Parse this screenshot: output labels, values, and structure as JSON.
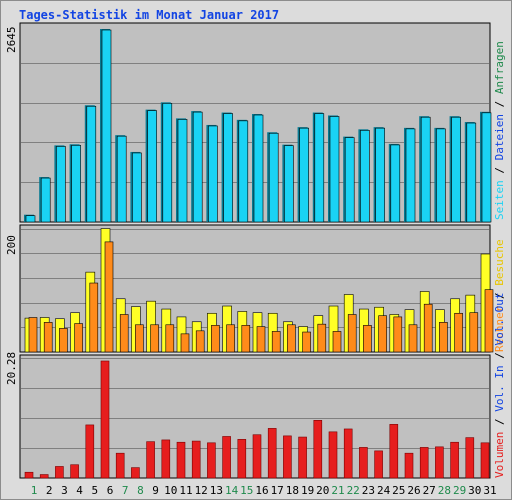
{
  "title": "Tages-Statistik im Monat Januar 2017",
  "colors": {
    "title": "#1244e3",
    "panel_bg": "#c0c0c0",
    "grid": "#808080",
    "hits": "#1ad3f4",
    "hits_dark": "#077a92",
    "pages": "#1ad3f4",
    "visits": "#ffff26",
    "visits_dark": "#a4a400",
    "sites": "#ff8b1a",
    "sites_dark": "#a84e00",
    "volume": "#e61e1e",
    "volume_dark": "#7a0000",
    "weekday": "#000000",
    "weekend": "#1f8a4c",
    "legend_anfragen": "#1f8a4c",
    "legend_dateien": "#1244e3",
    "legend_seiten": "#1ad3f4",
    "legend_besuche": "#e8c600",
    "legend_rechner": "#ff8b1a",
    "legend_volout": "#1244e3",
    "legend_volin": "#1244e3",
    "legend_volumen": "#e61e1e",
    "legend_sep": "#000000"
  },
  "legend": {
    "top": [
      "Anfragen",
      "Dateien",
      "Seiten"
    ],
    "middle": [
      "Besuche",
      "Rechner"
    ],
    "bottom": [
      "Vol. Out",
      "Vol. In",
      "Volumen"
    ],
    "separator": " / "
  },
  "chart_data": [
    {
      "type": "bar",
      "panel": "top",
      "ymax_label": "2645",
      "ylim": [
        0,
        2645
      ],
      "categories": [
        "1",
        "2",
        "3",
        "4",
        "5",
        "6",
        "7",
        "8",
        "9",
        "10",
        "11",
        "12",
        "13",
        "14",
        "15",
        "16",
        "17",
        "18",
        "19",
        "20",
        "21",
        "22",
        "23",
        "24",
        "25",
        "26",
        "27",
        "28",
        "29",
        "30",
        "31"
      ],
      "series": [
        {
          "name": "Anfragen",
          "values": [
            100,
            616,
            1050,
            1065,
            1600,
            2645,
            1190,
            960,
            1540,
            1640,
            1420,
            1520,
            1330,
            1500,
            1400,
            1480,
            1230,
            1060,
            1300,
            1500,
            1460,
            1170,
            1270,
            1300,
            1070,
            1290,
            1450,
            1290,
            1450,
            1370,
            1510
          ]
        },
        {
          "name": "Dateien",
          "values": [
            100,
            616,
            1050,
            1065,
            1600,
            2645,
            1190,
            960,
            1540,
            1640,
            1420,
            1520,
            1330,
            1500,
            1400,
            1480,
            1230,
            1060,
            1300,
            1500,
            1460,
            1170,
            1270,
            1300,
            1070,
            1290,
            1450,
            1290,
            1450,
            1370,
            1510
          ]
        },
        {
          "name": "Seiten",
          "values": [
            100,
            616,
            1050,
            1065,
            1600,
            2645,
            1190,
            960,
            1540,
            1640,
            1420,
            1520,
            1330,
            1500,
            1400,
            1480,
            1230,
            1060,
            1300,
            1500,
            1460,
            1170,
            1270,
            1300,
            1070,
            1290,
            1450,
            1290,
            1450,
            1370,
            1510
          ]
        }
      ]
    },
    {
      "type": "bar",
      "panel": "middle",
      "ymax_label": "200",
      "ylim": [
        0,
        200
      ],
      "categories": [
        "1",
        "2",
        "3",
        "4",
        "5",
        "6",
        "7",
        "8",
        "9",
        "10",
        "11",
        "12",
        "13",
        "14",
        "15",
        "16",
        "17",
        "18",
        "19",
        "20",
        "21",
        "22",
        "23",
        "24",
        "25",
        "26",
        "27",
        "28",
        "29",
        "30",
        "31"
      ],
      "series": [
        {
          "name": "Besuche",
          "values": [
            56,
            57,
            55,
            65,
            132,
            204,
            88,
            75,
            84,
            71,
            58,
            50,
            64,
            76,
            67,
            65,
            64,
            50,
            42,
            60,
            76,
            95,
            71,
            74,
            62,
            70,
            100,
            70,
            88,
            94,
            162
          ]
        },
        {
          "name": "Rechner",
          "values": [
            57,
            49,
            39,
            47,
            114,
            182,
            62,
            45,
            45,
            45,
            30,
            35,
            44,
            45,
            44,
            42,
            34,
            45,
            33,
            46,
            34,
            62,
            44,
            60,
            58,
            45,
            79,
            49,
            64,
            65,
            103
          ]
        }
      ]
    },
    {
      "type": "bar",
      "panel": "bottom",
      "ymax_label": "20.28",
      "ylim": [
        0,
        20.28
      ],
      "categories": [
        "1",
        "2",
        "3",
        "4",
        "5",
        "6",
        "7",
        "8",
        "9",
        "10",
        "11",
        "12",
        "13",
        "14",
        "15",
        "16",
        "17",
        "18",
        "19",
        "20",
        "21",
        "22",
        "23",
        "24",
        "25",
        "26",
        "27",
        "28",
        "29",
        "30",
        "31"
      ],
      "series": [
        {
          "name": "Volumen",
          "values": [
            1.0,
            0.6,
            2.0,
            2.3,
            9.2,
            20.28,
            4.3,
            1.8,
            6.3,
            6.6,
            6.2,
            6.4,
            6.1,
            7.2,
            6.7,
            7.5,
            8.6,
            7.3,
            7.1,
            10.0,
            8.0,
            8.5,
            5.3,
            4.7,
            9.3,
            4.3,
            5.3,
            5.4,
            6.2,
            7.0,
            6.1
          ]
        }
      ]
    }
  ]
}
